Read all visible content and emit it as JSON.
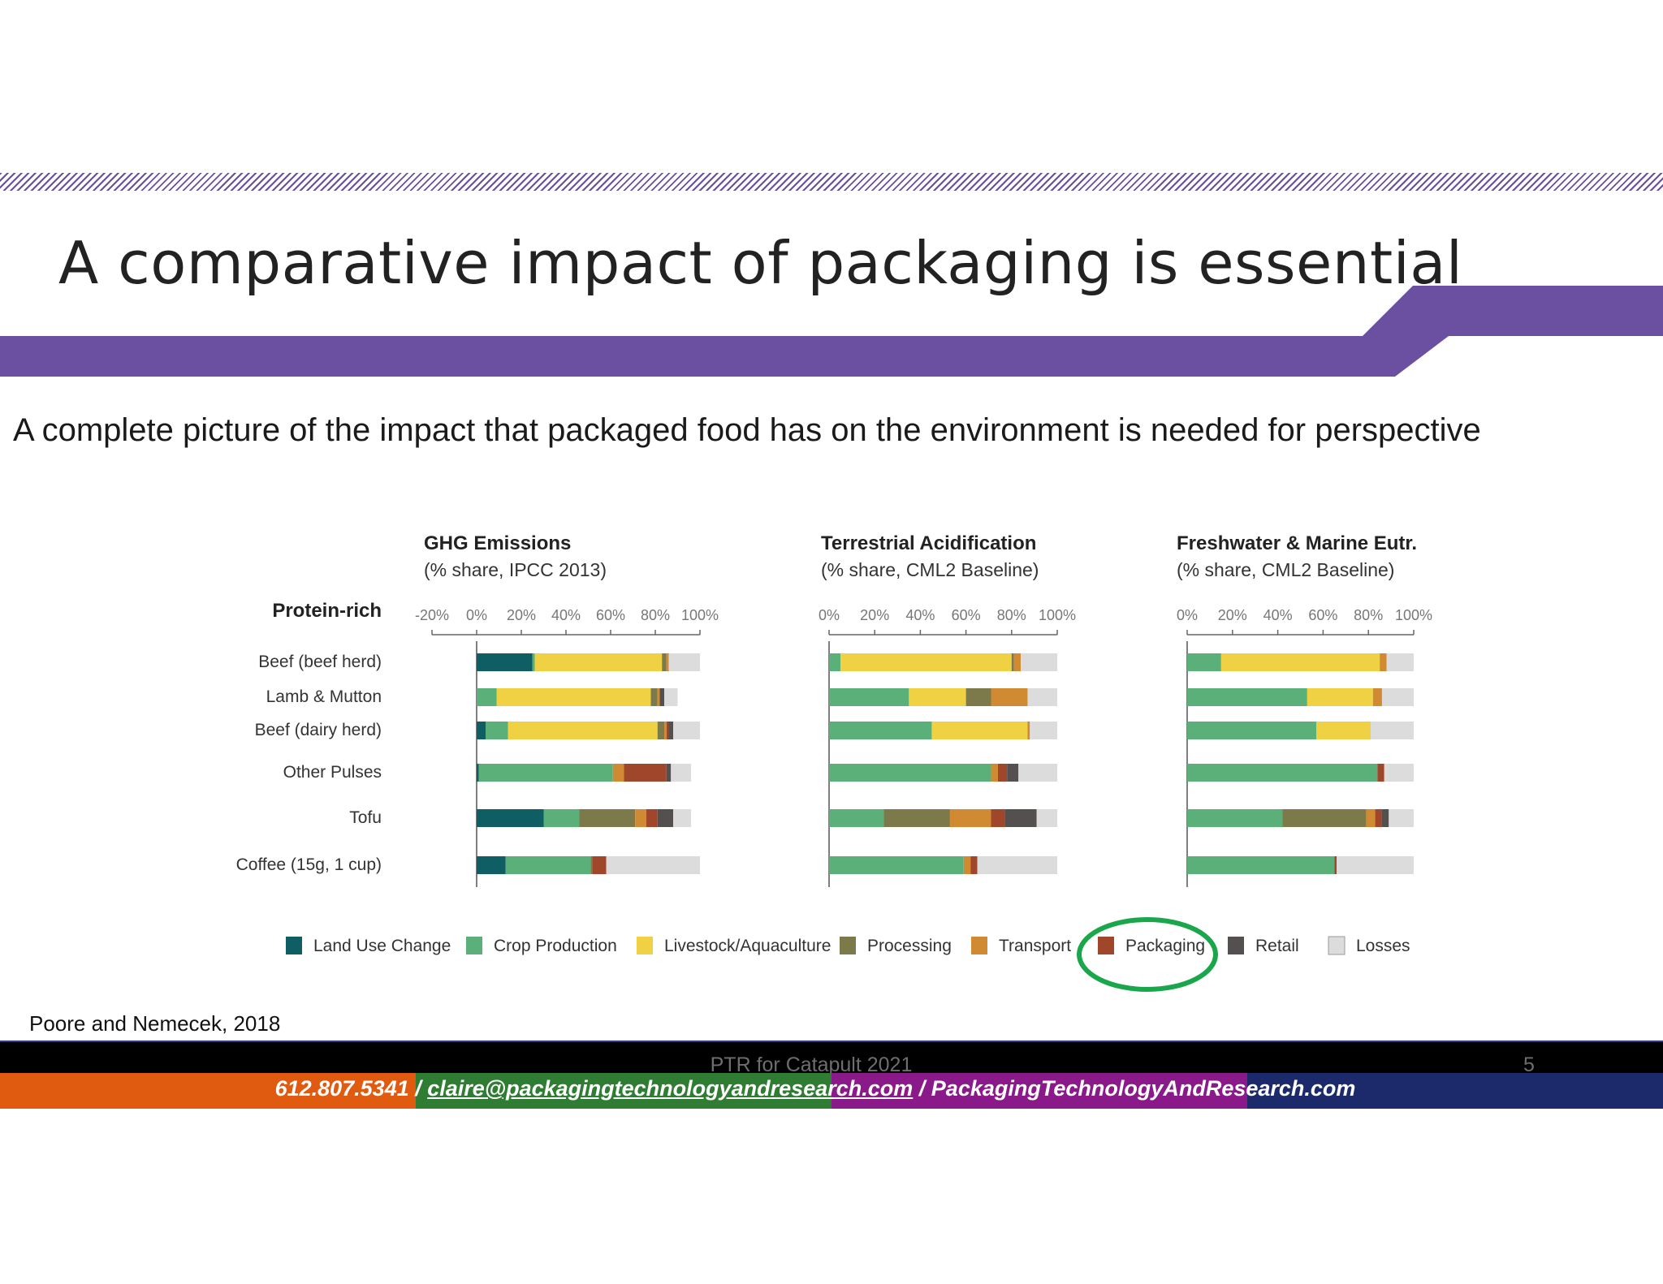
{
  "slide": {
    "title": "A comparative impact of packaging is essential",
    "subtitle": "A complete picture of the impact that packaged food has on the environment is needed for perspective",
    "citation": "Poore and Nemecek, 2018",
    "footer_text": "PTR  for Catapult 2021",
    "page_number": "5",
    "contact": {
      "phone": "612.807.5341 / ",
      "email": "claire@packagingtechnologyandresearch.com",
      "separator": " / ",
      "website": "PackagingTechnologyAndResearch.com"
    },
    "colors": {
      "accent_purple": "#6b4fa0",
      "footer_orange": "#e05a10",
      "footer_green": "#2e7d32",
      "footer_magenta": "#8a1a8a",
      "footer_navy": "#1c2a6b",
      "highlight_circle": "#1aa64a"
    }
  },
  "chart_data": {
    "type": "bar",
    "stacked": true,
    "group_label": "Protein-rich",
    "categories": [
      "Beef (beef herd)",
      "Lamb & Mutton",
      "Beef (dairy herd)",
      "Other Pulses",
      "Tofu",
      "Coffee (15g, 1 cup)"
    ],
    "legend": [
      {
        "name": "Land Use Change",
        "color": "#0f5e63"
      },
      {
        "name": "Crop Production",
        "color": "#5bb07a"
      },
      {
        "name": "Livestock/Aquaculture",
        "color": "#efd143"
      },
      {
        "name": "Processing",
        "color": "#7c7a4a"
      },
      {
        "name": "Transport",
        "color": "#d08a32"
      },
      {
        "name": "Packaging",
        "color": "#a0462a",
        "highlighted": true
      },
      {
        "name": "Retail",
        "color": "#555050"
      },
      {
        "name": "Losses",
        "color": "#dcdcdc"
      }
    ],
    "panels": [
      {
        "title": "GHG Emissions",
        "subtitle": "(% share, IPCC 2013)",
        "xlim": [
          -20,
          100
        ],
        "ticks": [
          "-20%",
          "0%",
          "20%",
          "40%",
          "60%",
          "80%",
          "100%"
        ],
        "tick_values": [
          -20,
          0,
          20,
          40,
          60,
          80,
          100
        ],
        "series_values": [
          [
            25,
            1,
            57,
            2,
            1,
            0,
            0,
            14
          ],
          [
            0,
            9,
            69,
            3,
            1,
            0,
            2,
            6
          ],
          [
            4,
            10,
            67,
            3,
            1,
            1,
            2,
            12
          ],
          [
            1,
            60,
            0,
            0,
            5,
            19,
            2,
            9
          ],
          [
            30,
            16,
            0,
            25,
            5,
            5,
            7,
            8
          ],
          [
            13,
            38,
            0,
            1,
            0,
            6,
            0,
            42
          ]
        ]
      },
      {
        "title": "Terrestrial Acidification",
        "subtitle": "(% share, CML2 Baseline)",
        "xlim": [
          0,
          100
        ],
        "ticks": [
          "0%",
          "20%",
          "40%",
          "60%",
          "80%",
          "100%"
        ],
        "tick_values": [
          0,
          20,
          40,
          60,
          80,
          100
        ],
        "series_values": [
          [
            0,
            5,
            75,
            1,
            3,
            0,
            0,
            16
          ],
          [
            0,
            35,
            25,
            11,
            16,
            0,
            0,
            13
          ],
          [
            0,
            45,
            42,
            0,
            1,
            0,
            0,
            12
          ],
          [
            0,
            71,
            0,
            0,
            3,
            4,
            5,
            17
          ],
          [
            0,
            24,
            0,
            29,
            18,
            6,
            14,
            9
          ],
          [
            0,
            59,
            0,
            0,
            3,
            3,
            0,
            35
          ]
        ]
      },
      {
        "title": "Freshwater & Marine Eutr.",
        "subtitle": "(% share, CML2 Baseline)",
        "xlim": [
          0,
          100
        ],
        "ticks": [
          "0%",
          "20%",
          "40%",
          "60%",
          "80%",
          "100%"
        ],
        "tick_values": [
          0,
          20,
          40,
          60,
          80,
          100
        ],
        "series_values": [
          [
            0,
            15,
            70,
            0,
            3,
            0,
            0,
            12
          ],
          [
            0,
            53,
            29,
            0,
            4,
            0,
            0,
            14
          ],
          [
            0,
            57,
            24,
            0,
            0,
            0,
            0,
            19
          ],
          [
            0,
            84,
            0,
            0,
            0,
            3,
            0,
            13
          ],
          [
            0,
            42,
            0,
            37,
            4,
            3,
            3,
            11
          ],
          [
            0,
            65,
            0,
            0,
            0,
            1,
            0,
            34
          ]
        ]
      }
    ]
  }
}
